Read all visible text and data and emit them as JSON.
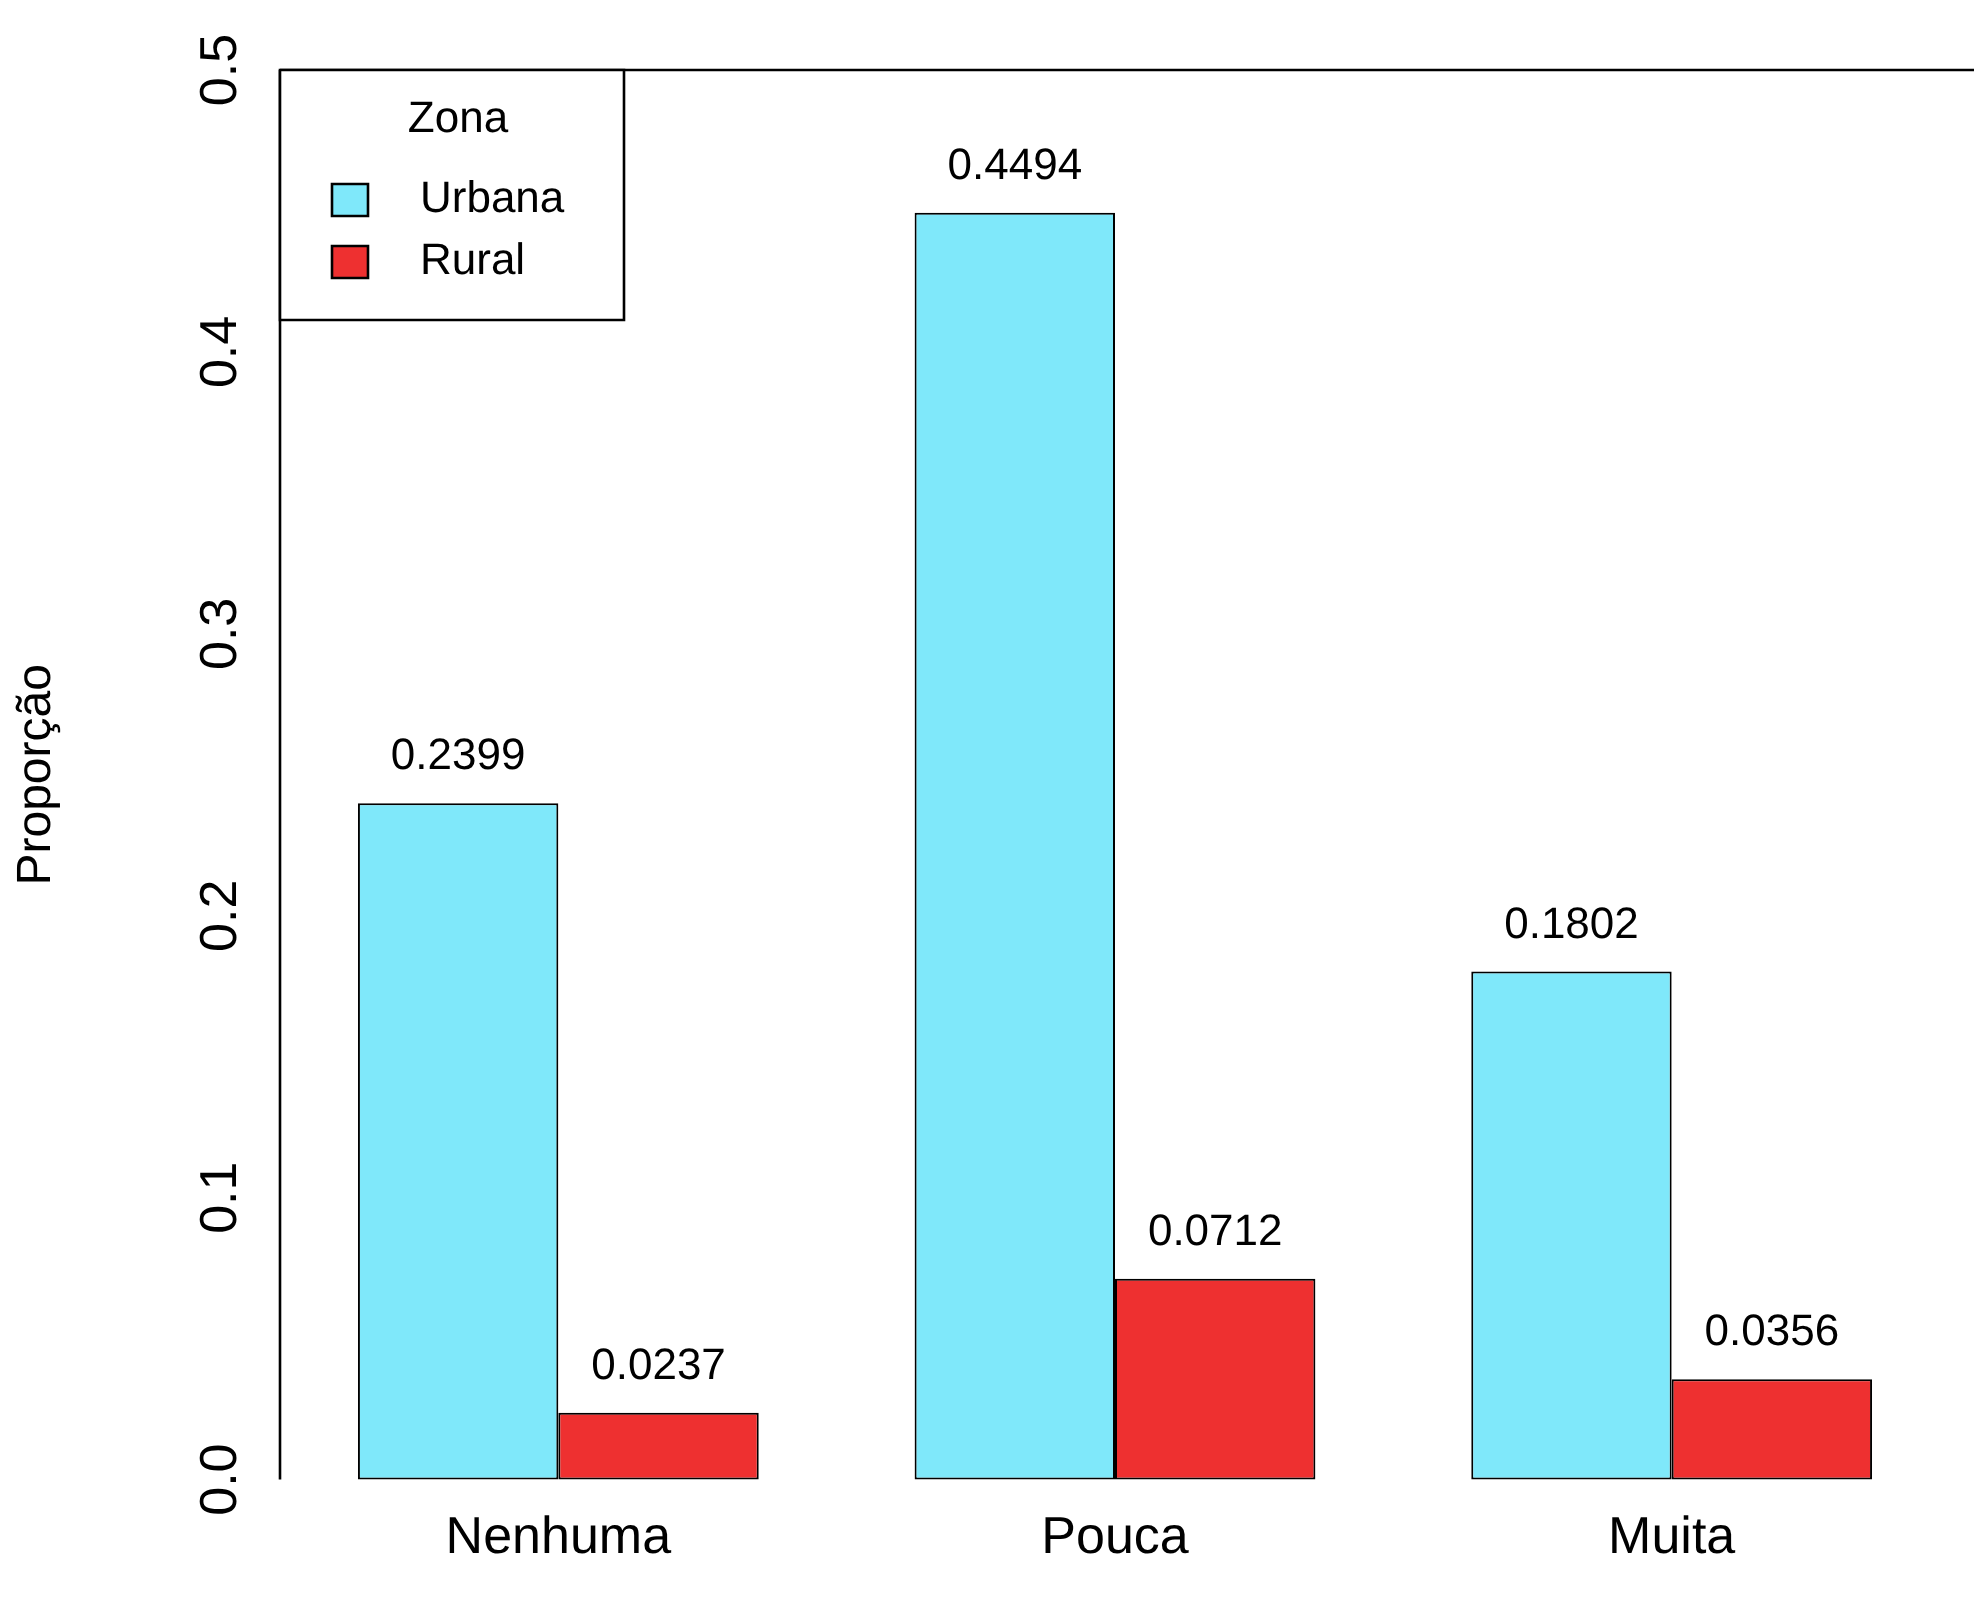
{
  "chart_data": {
    "type": "bar",
    "ylabel": "Proporção",
    "legend_title": "Zona",
    "categories": [
      "Nenhuma",
      "Pouca",
      "Muita"
    ],
    "series": [
      {
        "name": "Urbana",
        "color": "#7fe8fa",
        "values": [
          0.2399,
          0.4494,
          0.1802
        ]
      },
      {
        "name": "Rural",
        "color": "#ee3030",
        "values": [
          0.0237,
          0.0712,
          0.0356
        ]
      }
    ],
    "ylim": [
      0,
      0.5
    ],
    "yticks": [
      {
        "value": 0,
        "label": "0.0"
      },
      {
        "value": 0.1,
        "label": "0.1"
      },
      {
        "value": 0.2,
        "label": "0.2"
      },
      {
        "value": 0.3,
        "label": "0.3"
      },
      {
        "value": 0.4,
        "label": "0.4"
      },
      {
        "value": 0.5,
        "label": "0.5"
      }
    ],
    "ref_lines": [
      {
        "axis": "y",
        "value": 0.5,
        "color": "#000000"
      }
    ],
    "data_labels": true,
    "grid": false,
    "legend": "top left"
  }
}
